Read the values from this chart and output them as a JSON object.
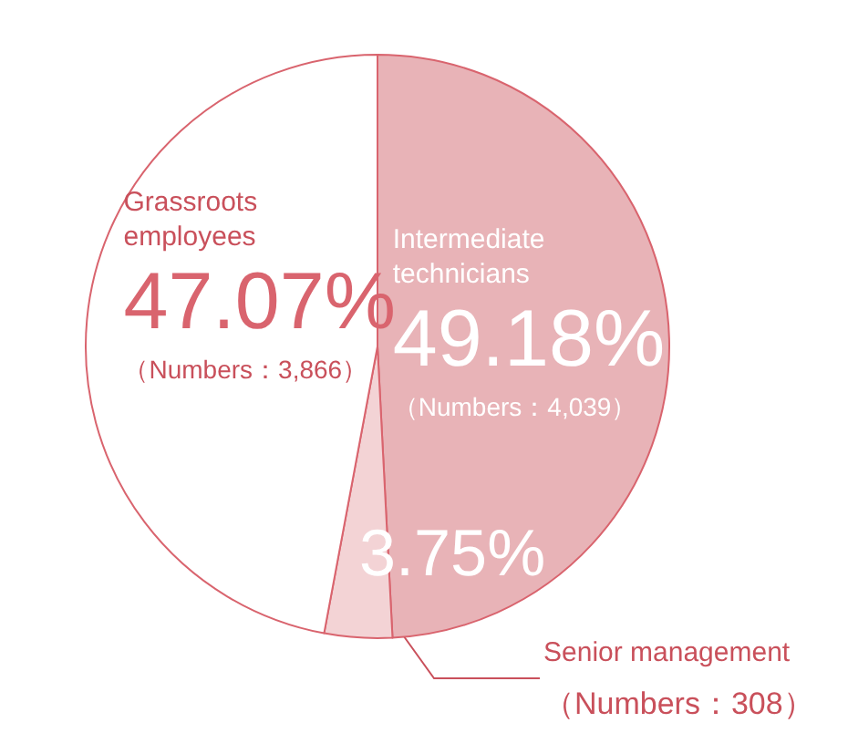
{
  "chart_data": {
    "type": "pie",
    "categories": [
      "Intermediate technicians",
      "Senior management",
      "Grassroots employees"
    ],
    "values": [
      49.18,
      3.75,
      47.07
    ],
    "colors": [
      "#e8b3b7",
      "#f3d3d5",
      "#ffffff"
    ],
    "value_labels": [
      "49.18%",
      "3.75%",
      "47.07%"
    ],
    "annotations": [
      "（Numbers：4,039）",
      "（Numbers：308）",
      "（Numbers：3,866）"
    ],
    "legend": false
  }
}
